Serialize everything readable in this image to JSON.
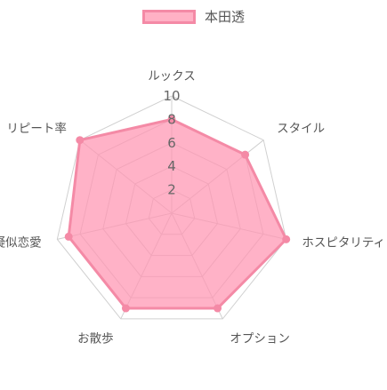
{
  "chart_data": {
    "type": "radar",
    "axes": [
      "ルックス",
      "スタイル",
      "ホスピタリティ",
      "オプション",
      "お散歩",
      "疑似恋愛",
      "リピート率"
    ],
    "series": [
      {
        "name": "本田透",
        "values": [
          8,
          8,
          10,
          9,
          9,
          9,
          10
        ]
      }
    ],
    "r_range": [
      0,
      10
    ],
    "r_ticks": [
      "2",
      "4",
      "6",
      "8",
      "10"
    ],
    "grid": true,
    "legend_position": "top",
    "colors": {
      "fill": "#ff94b2",
      "stroke": "#f48aa6",
      "grid": "#d0d0d0",
      "label": "#555555"
    }
  }
}
